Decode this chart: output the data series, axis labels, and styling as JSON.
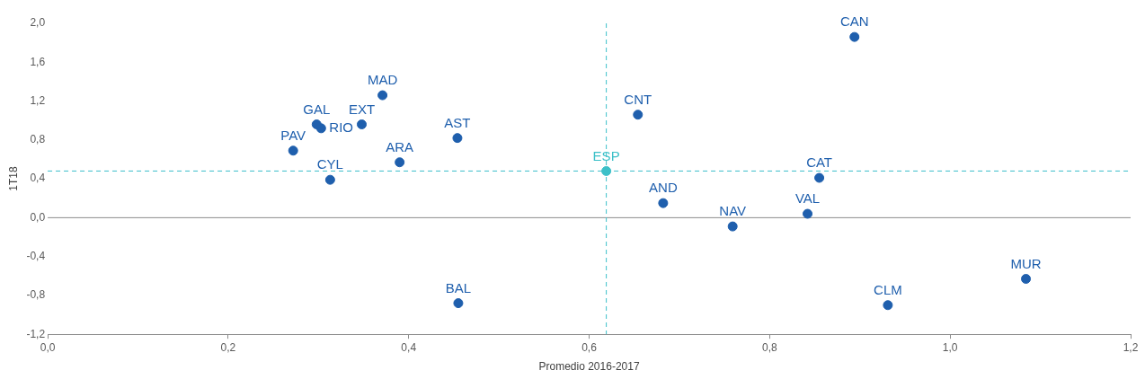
{
  "chart_data": {
    "type": "scatter",
    "xlabel": "Promedio 2016-2017",
    "ylabel": "1T18",
    "xlim": [
      0,
      1.2
    ],
    "xticks": [
      {
        "value": 0,
        "label": "0,0"
      },
      {
        "value": 0.2,
        "label": "0,2"
      },
      {
        "value": 0.4,
        "label": "0,4"
      },
      {
        "value": 0.6,
        "label": "0,6"
      },
      {
        "value": 0.8,
        "label": "0,8"
      },
      {
        "value": 1,
        "label": "1,0"
      },
      {
        "value": 1.2,
        "label": "1,2"
      }
    ],
    "ylim": [
      -1.2,
      2
    ],
    "yticks": [
      {
        "value": -1.2,
        "label": "-1,2"
      },
      {
        "value": -0.8,
        "label": "-0,8"
      },
      {
        "value": -0.4,
        "label": "-0,4"
      },
      {
        "value": 0,
        "label": "0,0"
      },
      {
        "value": 0.4,
        "label": "0,4"
      },
      {
        "value": 0.8,
        "label": "0,8"
      },
      {
        "value": 1.2,
        "label": "1,2"
      },
      {
        "value": 1.6,
        "label": "1,6"
      },
      {
        "value": 2,
        "label": "2,0"
      }
    ],
    "grid": false,
    "legend": false,
    "marker": "circle",
    "series": [
      {
        "name": "CAN",
        "color": "#1f5fad",
        "x": [
          0.894
        ],
        "values": [
          1.86
        ]
      },
      {
        "name": "MAD",
        "color": "#1f5fad",
        "x": [
          0.371
        ],
        "values": [
          1.26
        ]
      },
      {
        "name": "GAL",
        "color": "#1f5fad",
        "x": [
          0.298
        ],
        "values": [
          0.96
        ]
      },
      {
        "name": "RIO",
        "color": "#1f5fad",
        "x": [
          0.303
        ],
        "values": [
          0.92
        ]
      },
      {
        "name": "EXT",
        "color": "#1f5fad",
        "x": [
          0.348
        ],
        "values": [
          0.96
        ]
      },
      {
        "name": "PAV",
        "color": "#1f5fad",
        "x": [
          0.272
        ],
        "values": [
          0.69
        ]
      },
      {
        "name": "CYL",
        "color": "#1f5fad",
        "x": [
          0.313
        ],
        "values": [
          0.39
        ]
      },
      {
        "name": "ARA",
        "color": "#1f5fad",
        "x": [
          0.39
        ],
        "values": [
          0.57
        ]
      },
      {
        "name": "AST",
        "color": "#1f5fad",
        "x": [
          0.454
        ],
        "values": [
          0.82
        ]
      },
      {
        "name": "ESP",
        "color": "#3cc0c8",
        "x": [
          0.619
        ],
        "values": [
          0.48
        ]
      },
      {
        "name": "CNT",
        "color": "#1f5fad",
        "x": [
          0.654
        ],
        "values": [
          1.06
        ]
      },
      {
        "name": "CAT",
        "color": "#1f5fad",
        "x": [
          0.855
        ],
        "values": [
          0.41
        ]
      },
      {
        "name": "AND",
        "color": "#1f5fad",
        "x": [
          0.682
        ],
        "values": [
          0.15
        ]
      },
      {
        "name": "NAV",
        "color": "#1f5fad",
        "x": [
          0.759
        ],
        "values": [
          -0.09
        ]
      },
      {
        "name": "VAL",
        "color": "#1f5fad",
        "x": [
          0.842
        ],
        "values": [
          0.04
        ]
      },
      {
        "name": "BAL",
        "color": "#1f5fad",
        "x": [
          0.455
        ],
        "values": [
          -0.88
        ]
      },
      {
        "name": "CLM",
        "color": "#1f5fad",
        "x": [
          0.931
        ],
        "values": [
          -0.9
        ]
      },
      {
        "name": "MUR",
        "color": "#1f5fad",
        "x": [
          1.084
        ],
        "values": [
          -0.63
        ]
      }
    ],
    "ref_lines": [
      {
        "axis": "y",
        "value": 0,
        "color": "#8c8c8c",
        "line_style": "solid"
      },
      {
        "axis": "y",
        "value": 0.48,
        "color": "#3cbfca",
        "line_style": "dashed"
      },
      {
        "axis": "x",
        "value": 0.619,
        "color": "#3cbfca",
        "line_style": "dashed"
      }
    ]
  }
}
